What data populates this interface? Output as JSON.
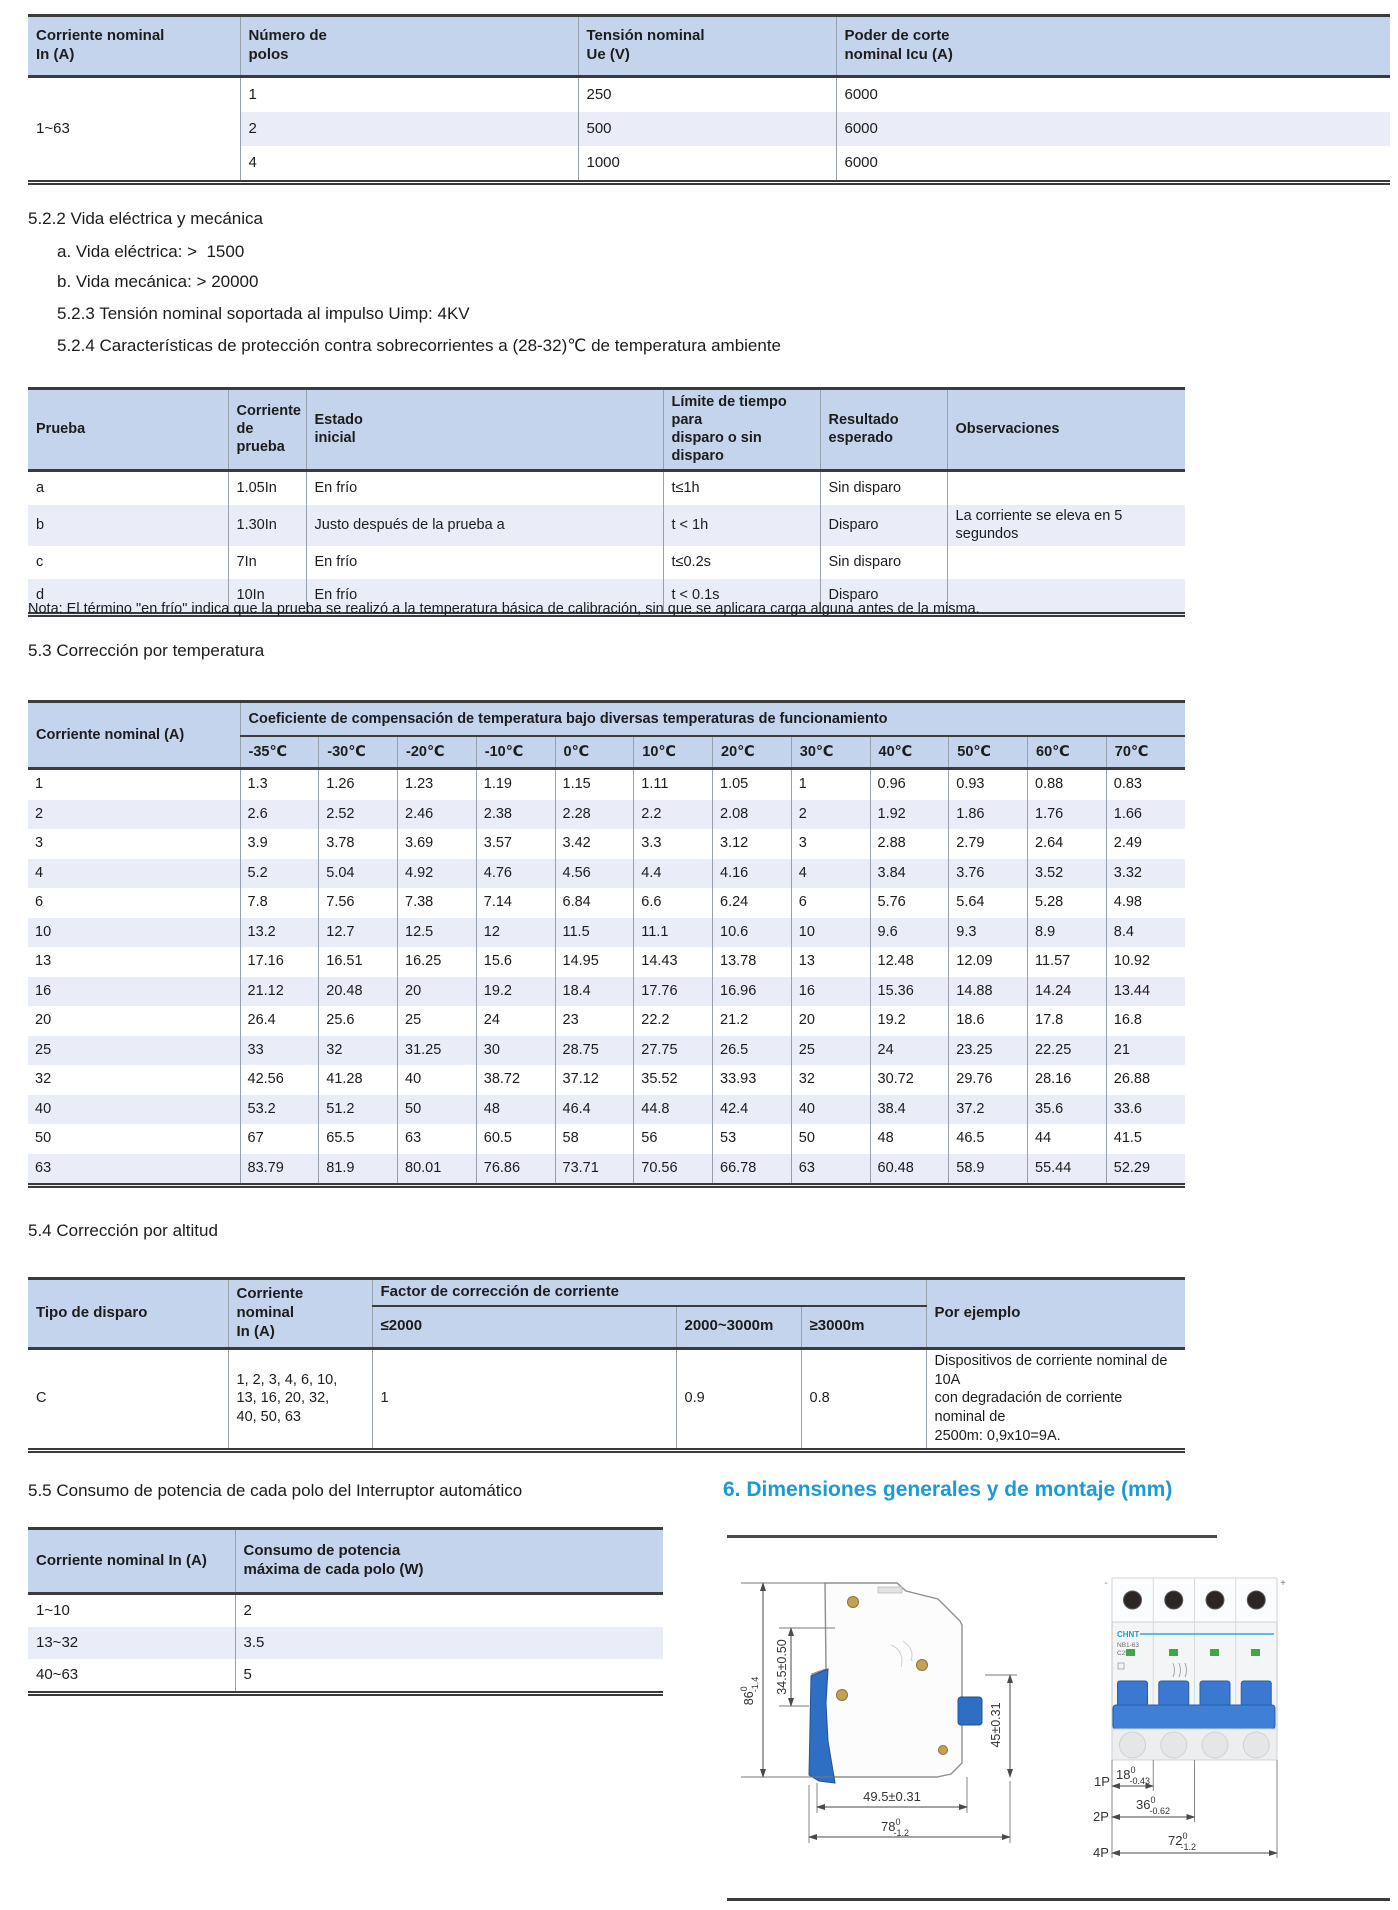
{
  "ratings_table": {
    "col_headers": [
      "Corriente nominal\nIn (A)",
      "Número de\npolos",
      "Tensión nominal\nUe (V)",
      "Poder de corte\nnominal Icu (A)"
    ],
    "current_range": "1~63",
    "rows": [
      {
        "poles": "1",
        "voltage": "250",
        "breaking": "6000"
      },
      {
        "poles": "2",
        "voltage": "500",
        "breaking": "6000"
      },
      {
        "poles": "4",
        "voltage": "1000",
        "breaking": "6000"
      }
    ]
  },
  "life_section": {
    "title": "5.2.2 Vida eléctrica y mecánica",
    "line_a": "a. Vida eléctrica: >  1500",
    "line_b": "b. Vida mecánica: > 20000",
    "line_523": "5.2.3 Tensión nominal soportada al impulso Uimp: 4KV",
    "line_524": "5.2.4 Características de protección contra sobrecorrientes a (28-32)℃ de temperatura ambiente"
  },
  "test_table": {
    "col_headers": [
      "Prueba",
      "Corriente\nde prueba",
      "Estado\ninicial",
      "Límite de tiempo para\ndisparo o sin disparo",
      "Resultado\nesperado",
      "Observaciones"
    ],
    "rows": [
      {
        "test": "a",
        "current": "1.05In",
        "initial": "En frío",
        "limit": "t≤1h",
        "result": "Sin disparo",
        "obs": ""
      },
      {
        "test": "b",
        "current": "1.30In",
        "initial": "Justo después de la prueba a",
        "limit": "t < 1h",
        "result": "Disparo",
        "obs": "La corriente se eleva en 5 segundos"
      },
      {
        "test": "c",
        "current": "7In",
        "initial": "En frío",
        "limit": "t≤0.2s",
        "result": "Sin disparo",
        "obs": ""
      },
      {
        "test": "d",
        "current": "10In",
        "initial": "En frío",
        "limit": "t < 0.1s",
        "result": "Disparo",
        "obs": ""
      }
    ]
  },
  "note": "Nota: El término \"en frío\" indica que la prueba se realizó a la temperatura básica de calibración, sin que se aplicara carga alguna antes de la misma.",
  "temp_section_title": "5.3 Corrección por temperatura",
  "temp_table": {
    "corner_header": "Corriente nominal (A)",
    "span_header": "Coeficiente de compensación de temperatura bajo diversas temperaturas de funcionamiento",
    "col_headers": [
      "-35℃",
      "-30℃",
      "-20℃",
      "-10℃",
      "0℃",
      "10℃",
      "20℃",
      "30℃",
      "40℃",
      "50℃",
      "60℃",
      "70℃"
    ],
    "rows": [
      {
        "current": "1",
        "values": [
          "1.3",
          "1.26",
          "1.23",
          "1.19",
          "1.15",
          "1.11",
          "1.05",
          "1",
          "0.96",
          "0.93",
          "0.88",
          "0.83"
        ]
      },
      {
        "current": "2",
        "values": [
          "2.6",
          "2.52",
          "2.46",
          "2.38",
          "2.28",
          "2.2",
          "2.08",
          "2",
          "1.92",
          "1.86",
          "1.76",
          "1.66"
        ]
      },
      {
        "current": "3",
        "values": [
          "3.9",
          "3.78",
          "3.69",
          "3.57",
          "3.42",
          "3.3",
          "3.12",
          "3",
          "2.88",
          "2.79",
          "2.64",
          "2.49"
        ]
      },
      {
        "current": "4",
        "values": [
          "5.2",
          "5.04",
          "4.92",
          "4.76",
          "4.56",
          "4.4",
          "4.16",
          "4",
          "3.84",
          "3.76",
          "3.52",
          "3.32"
        ]
      },
      {
        "current": "6",
        "values": [
          "7.8",
          "7.56",
          "7.38",
          "7.14",
          "6.84",
          "6.6",
          "6.24",
          "6",
          "5.76",
          "5.64",
          "5.28",
          "4.98"
        ]
      },
      {
        "current": "10",
        "values": [
          "13.2",
          "12.7",
          "12.5",
          "12",
          "11.5",
          "11.1",
          "10.6",
          "10",
          "9.6",
          "9.3",
          "8.9",
          "8.4"
        ]
      },
      {
        "current": "13",
        "values": [
          "17.16",
          "16.51",
          "16.25",
          "15.6",
          "14.95",
          "14.43",
          "13.78",
          "13",
          "12.48",
          "12.09",
          "11.57",
          "10.92"
        ]
      },
      {
        "current": "16",
        "values": [
          "21.12",
          "20.48",
          "20",
          "19.2",
          "18.4",
          "17.76",
          "16.96",
          "16",
          "15.36",
          "14.88",
          "14.24",
          "13.44"
        ]
      },
      {
        "current": "20",
        "values": [
          "26.4",
          "25.6",
          "25",
          "24",
          "23",
          "22.2",
          "21.2",
          "20",
          "19.2",
          "18.6",
          "17.8",
          "16.8"
        ]
      },
      {
        "current": "25",
        "values": [
          "33",
          "32",
          "31.25",
          "30",
          "28.75",
          "27.75",
          "26.5",
          "25",
          "24",
          "23.25",
          "22.25",
          "21"
        ]
      },
      {
        "current": "32",
        "values": [
          "42.56",
          "41.28",
          "40",
          "38.72",
          "37.12",
          "35.52",
          "33.93",
          "32",
          "30.72",
          "29.76",
          "28.16",
          "26.88"
        ]
      },
      {
        "current": "40",
        "values": [
          "53.2",
          "51.2",
          "50",
          "48",
          "46.4",
          "44.8",
          "42.4",
          "40",
          "38.4",
          "37.2",
          "35.6",
          "33.6"
        ]
      },
      {
        "current": "50",
        "values": [
          "67",
          "65.5",
          "63",
          "60.5",
          "58",
          "56",
          "53",
          "50",
          "48",
          "46.5",
          "44",
          "41.5"
        ]
      },
      {
        "current": "63",
        "values": [
          "83.79",
          "81.9",
          "80.01",
          "76.86",
          "73.71",
          "70.56",
          "66.78",
          "63",
          "60.48",
          "58.9",
          "55.44",
          "52.29"
        ]
      }
    ]
  },
  "altitude_section_title": "5.4 Corrección por altitud",
  "altitude_table": {
    "trip_header": "Tipo de disparo",
    "current_header": "Corriente nominal\nIn (A)",
    "factor_header": "Factor de corrección de corriente",
    "sub_headers": [
      "≤2000",
      "2000~3000m",
      "≥3000m"
    ],
    "example_header": "Por ejemplo",
    "row": {
      "trip": "C",
      "current": "1, 2, 3, 4, 6, 10,\n13, 16, 20, 32,\n40, 50, 63",
      "factors": [
        "1",
        "0.9",
        "0.8"
      ],
      "example": "Dispositivos de corriente nominal de 10A\ncon degradación de corriente nominal de\n2500m: 0,9x10=9A."
    }
  },
  "power_section_title": "5.5 Consumo de potencia de cada polo del Interruptor automático",
  "power_table": {
    "col_headers": [
      "Corriente nominal In (A)",
      "Consumo de potencia\nmáxima de cada polo (W)"
    ],
    "rows": [
      {
        "range": "1~10",
        "power": "2"
      },
      {
        "range": "13~32",
        "power": "3.5"
      },
      {
        "range": "40~63",
        "power": "5"
      }
    ]
  },
  "dimensions_section": {
    "title": "6. Dimensiones generales y de montaje (mm)",
    "accent_color": "#1b9ad6",
    "side_view": {
      "dim_height": "86",
      "dim_height_tol_top": "0",
      "dim_height_tol_bottom": "-1.4",
      "dim_rail": "34.5±0.50",
      "dim_front": "45±0.31",
      "dim_depth": "49.5±0.31",
      "dim_total": "78",
      "dim_total_tol_top": "0",
      "dim_total_tol_bottom": "-1.2"
    },
    "front_view": {
      "brand": "CHNT",
      "model_line1": "NB1-63",
      "model_line2": "C25A",
      "mark_left": "-",
      "mark_right": "+",
      "pole_label_1p": "1P",
      "pole_label_2p": "2P",
      "pole_label_4p": "4P",
      "dim_1p": "18",
      "dim_1p_tol_top": "0",
      "dim_1p_tol_bottom": "-0.43",
      "dim_2p": "36",
      "dim_2p_tol_top": "0",
      "dim_2p_tol_bottom": "-0.62",
      "dim_4p": "72",
      "dim_4p_tol_top": "0",
      "dim_4p_tol_bottom": "-1.2"
    }
  },
  "colors": {
    "header_bg": "#c4d4ec",
    "stripe_bg": "#e9edf8",
    "breaker_blue": "#2e6fc4"
  }
}
